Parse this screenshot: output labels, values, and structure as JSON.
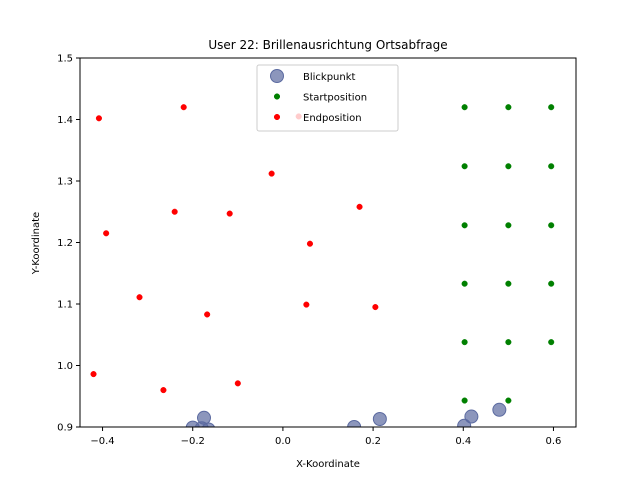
{
  "chart_data": {
    "type": "scatter",
    "title": "User 22: Brillenausrichtung Ortsabfrage",
    "xlabel": "X-Koordinate",
    "ylabel": "Y-Koordinate",
    "xlim": [
      -0.45,
      0.65
    ],
    "ylim": [
      0.9,
      1.5
    ],
    "xticks": [
      -0.4,
      -0.2,
      0.0,
      0.2,
      0.4,
      0.6
    ],
    "xtick_labels": [
      "−0.4",
      "−0.2",
      "0.0",
      "0.2",
      "0.4",
      "0.6"
    ],
    "yticks": [
      0.9,
      1.0,
      1.1,
      1.2,
      1.3,
      1.4,
      1.5
    ],
    "ytick_labels": [
      "0.9",
      "1.0",
      "1.1",
      "1.2",
      "1.3",
      "1.4",
      "1.5"
    ],
    "grid": false,
    "legend_position": "top-center",
    "series": [
      {
        "name": "Blickpunkt",
        "color": "#5b6aa0",
        "marker": "large-circle",
        "points": [
          [
            -0.2,
            0.899
          ],
          [
            -0.18,
            0.898
          ],
          [
            -0.165,
            0.896
          ],
          [
            -0.175,
            0.915
          ],
          [
            0.158,
            0.9
          ],
          [
            0.215,
            0.913
          ],
          [
            0.402,
            0.902
          ],
          [
            0.418,
            0.917
          ],
          [
            0.48,
            0.928
          ]
        ]
      },
      {
        "name": "Startposition",
        "color": "#008000",
        "marker": "small-circle",
        "points": [
          [
            0.403,
            1.42
          ],
          [
            0.5,
            1.42
          ],
          [
            0.595,
            1.42
          ],
          [
            0.403,
            1.324
          ],
          [
            0.5,
            1.324
          ],
          [
            0.595,
            1.324
          ],
          [
            0.403,
            1.228
          ],
          [
            0.5,
            1.228
          ],
          [
            0.595,
            1.228
          ],
          [
            0.403,
            1.133
          ],
          [
            0.5,
            1.133
          ],
          [
            0.595,
            1.133
          ],
          [
            0.403,
            1.038
          ],
          [
            0.5,
            1.038
          ],
          [
            0.595,
            1.038
          ],
          [
            0.403,
            0.943
          ],
          [
            0.5,
            0.943
          ]
        ]
      },
      {
        "name": "Endposition",
        "color": "#ff0000",
        "marker": "small-circle",
        "points": [
          [
            -0.408,
            1.402
          ],
          [
            -0.22,
            1.42
          ],
          [
            0.035,
            1.405
          ],
          [
            -0.025,
            1.312
          ],
          [
            -0.24,
            1.25
          ],
          [
            -0.118,
            1.247
          ],
          [
            0.17,
            1.258
          ],
          [
            -0.392,
            1.215
          ],
          [
            0.06,
            1.198
          ],
          [
            -0.318,
            1.111
          ],
          [
            -0.168,
            1.083
          ],
          [
            0.052,
            1.099
          ],
          [
            0.205,
            1.095
          ],
          [
            -0.42,
            0.986
          ],
          [
            -0.265,
            0.96
          ],
          [
            -0.1,
            0.971
          ]
        ]
      }
    ]
  }
}
